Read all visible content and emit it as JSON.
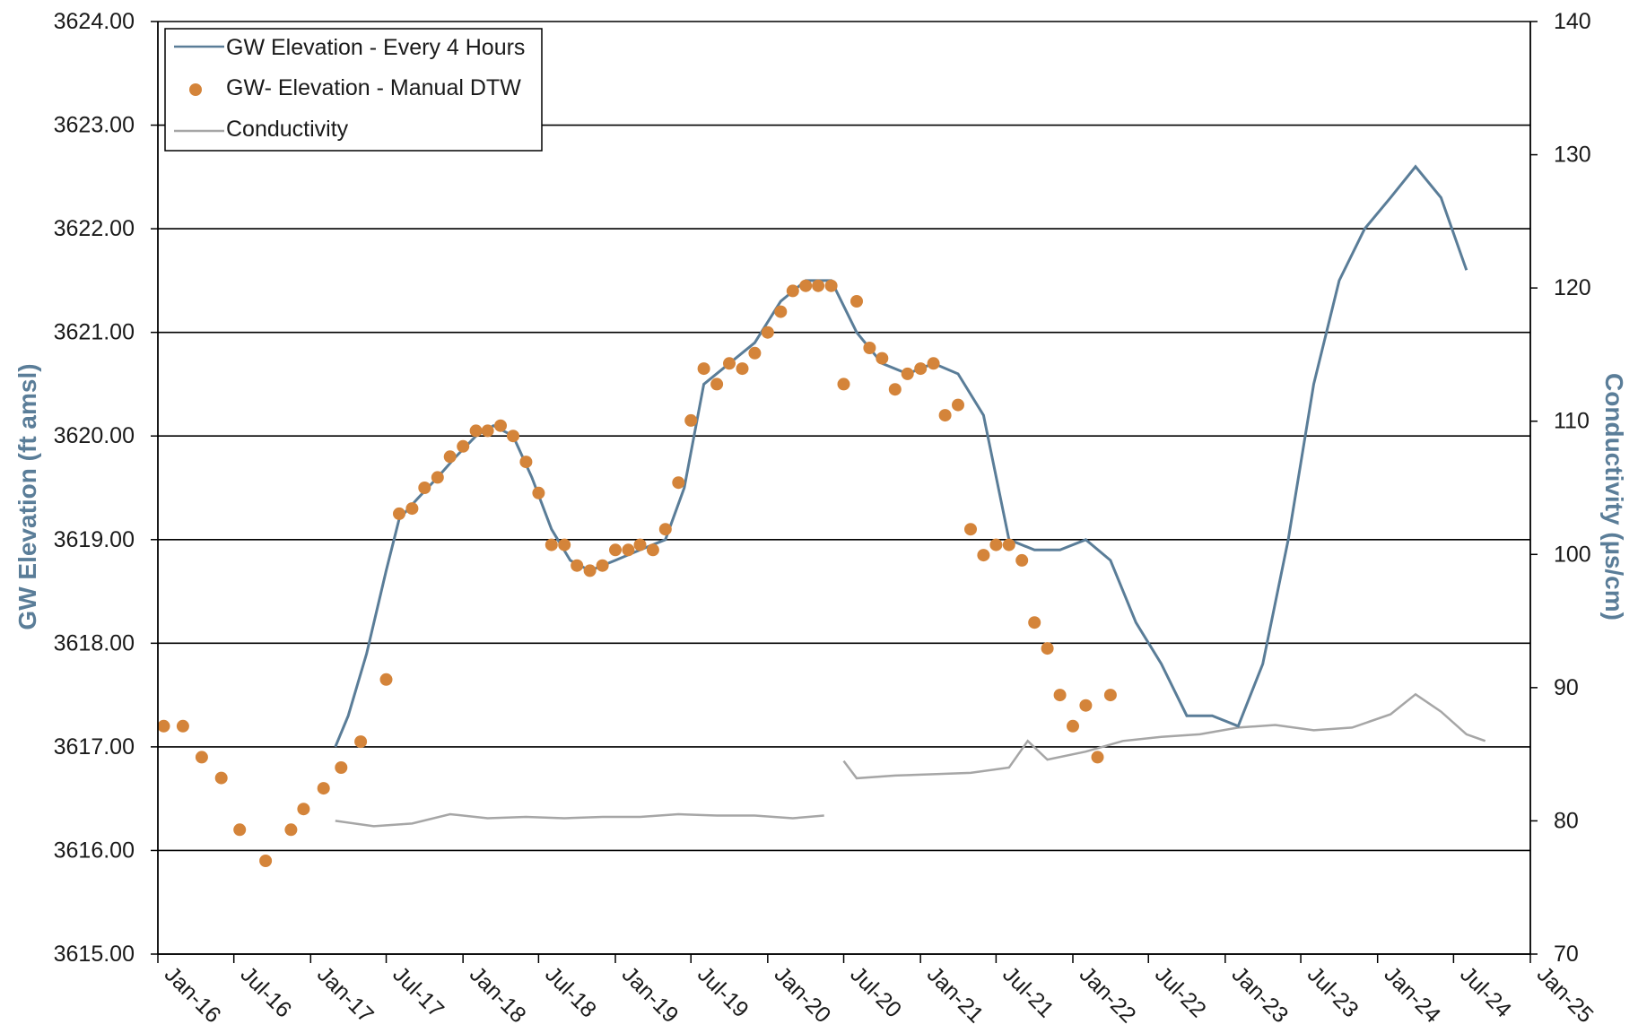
{
  "chart_data": {
    "type": "line",
    "title": "",
    "xlabel": "",
    "ylabel": "GW Elevation (ft amsl)",
    "y2label": "Conductivity (µs/cm)",
    "ylim": [
      3615,
      3624
    ],
    "y2lim": [
      70,
      140
    ],
    "x_tick_labels": [
      "Jan-16",
      "Jul-16",
      "Jan-17",
      "Jul-17",
      "Jan-18",
      "Jul-18",
      "Jan-19",
      "Jul-19",
      "Jan-20",
      "Jul-20",
      "Jan-21",
      "Jul-21",
      "Jan-22",
      "Jul-22",
      "Jan-23",
      "Jul-23",
      "Jan-24",
      "Jul-24",
      "Jan-25"
    ],
    "y_tick_labels": [
      "3615.00",
      "3616.00",
      "3617.00",
      "3618.00",
      "3619.00",
      "3620.00",
      "3621.00",
      "3622.00",
      "3623.00",
      "3624.00"
    ],
    "y2_tick_labels": [
      "70",
      "80",
      "90",
      "100",
      "110",
      "120",
      "130",
      "140"
    ],
    "grid": "horizontal",
    "legend_position": "top-left",
    "colors": {
      "gw_line": "#5a7d98",
      "manual_points": "#d4843a",
      "conductivity": "#a6a6a6",
      "y_title": "#5a7d98",
      "y2_title": "#5a7d98"
    },
    "series": [
      {
        "name": "GW Elevation - Every 4 Hours",
        "axis": "left",
        "style": "line",
        "points": [
          [
            "2017-03-01",
            3617.0
          ],
          [
            "2017-04-01",
            3617.3
          ],
          [
            "2017-05-15",
            3617.9
          ],
          [
            "2017-07-01",
            3618.7
          ],
          [
            "2017-08-01",
            3619.2
          ],
          [
            "2017-09-15",
            3619.4
          ],
          [
            "2017-11-01",
            3619.6
          ],
          [
            "2017-12-15",
            3619.8
          ],
          [
            "2018-02-01",
            3620.0
          ],
          [
            "2018-03-15",
            3620.1
          ],
          [
            "2018-05-01",
            3620.0
          ],
          [
            "2018-06-15",
            3619.6
          ],
          [
            "2018-08-01",
            3619.1
          ],
          [
            "2018-09-15",
            3618.8
          ],
          [
            "2018-11-01",
            3618.7
          ],
          [
            "2019-01-01",
            3618.8
          ],
          [
            "2019-03-01",
            3618.9
          ],
          [
            "2019-05-01",
            3619.0
          ],
          [
            "2019-06-15",
            3619.5
          ],
          [
            "2019-08-01",
            3620.5
          ],
          [
            "2019-10-01",
            3620.7
          ],
          [
            "2019-12-01",
            3620.9
          ],
          [
            "2020-02-01",
            3621.3
          ],
          [
            "2020-04-01",
            3621.5
          ],
          [
            "2020-06-01",
            3621.5
          ],
          [
            "2020-08-01",
            3621.0
          ],
          [
            "2020-10-01",
            3620.7
          ],
          [
            "2020-12-01",
            3620.6
          ],
          [
            "2021-02-01",
            3620.7
          ],
          [
            "2021-04-01",
            3620.6
          ],
          [
            "2021-06-01",
            3620.2
          ],
          [
            "2021-08-01",
            3619.0
          ],
          [
            "2021-10-01",
            3618.9
          ],
          [
            "2021-12-01",
            3618.9
          ],
          [
            "2022-02-01",
            3619.0
          ],
          [
            "2022-04-01",
            3618.8
          ],
          [
            "2022-06-01",
            3618.2
          ],
          [
            "2022-08-01",
            3617.8
          ],
          [
            "2022-10-01",
            3617.3
          ],
          [
            "2022-12-01",
            3617.3
          ],
          [
            "2023-02-01",
            3617.2
          ],
          [
            "2023-04-01",
            3617.8
          ],
          [
            "2023-06-01",
            3619.0
          ],
          [
            "2023-08-01",
            3620.5
          ],
          [
            "2023-10-01",
            3621.5
          ],
          [
            "2023-12-01",
            3622.0
          ],
          [
            "2024-02-01",
            3622.3
          ],
          [
            "2024-04-01",
            3622.6
          ],
          [
            "2024-06-01",
            3622.3
          ],
          [
            "2024-08-01",
            3621.6
          ]
        ]
      },
      {
        "name": "GW- Elevation - Manual DTW",
        "axis": "left",
        "style": "points",
        "points": [
          [
            "2016-01-15",
            3617.2
          ],
          [
            "2016-03-01",
            3617.2
          ],
          [
            "2016-04-15",
            3616.9
          ],
          [
            "2016-06-01",
            3616.7
          ],
          [
            "2016-07-15",
            3616.2
          ],
          [
            "2016-09-15",
            3615.9
          ],
          [
            "2016-11-15",
            3616.2
          ],
          [
            "2016-12-15",
            3616.4
          ],
          [
            "2017-02-01",
            3616.6
          ],
          [
            "2017-03-15",
            3616.8
          ],
          [
            "2017-05-01",
            3617.05
          ],
          [
            "2017-07-01",
            3617.65
          ],
          [
            "2017-08-01",
            3619.25
          ],
          [
            "2017-09-01",
            3619.3
          ],
          [
            "2017-10-01",
            3619.5
          ],
          [
            "2017-11-01",
            3619.6
          ],
          [
            "2017-12-01",
            3619.8
          ],
          [
            "2018-01-01",
            3619.9
          ],
          [
            "2018-02-01",
            3620.05
          ],
          [
            "2018-03-01",
            3620.05
          ],
          [
            "2018-04-01",
            3620.1
          ],
          [
            "2018-05-01",
            3620.0
          ],
          [
            "2018-06-01",
            3619.75
          ],
          [
            "2018-07-01",
            3619.45
          ],
          [
            "2018-08-01",
            3618.95
          ],
          [
            "2018-09-01",
            3618.95
          ],
          [
            "2018-10-01",
            3618.75
          ],
          [
            "2018-11-01",
            3618.7
          ],
          [
            "2018-12-01",
            3618.75
          ],
          [
            "2019-01-01",
            3618.9
          ],
          [
            "2019-02-01",
            3618.9
          ],
          [
            "2019-03-01",
            3618.95
          ],
          [
            "2019-04-01",
            3618.9
          ],
          [
            "2019-05-01",
            3619.1
          ],
          [
            "2019-06-01",
            3619.55
          ],
          [
            "2019-07-01",
            3620.15
          ],
          [
            "2019-08-01",
            3620.65
          ],
          [
            "2019-09-01",
            3620.5
          ],
          [
            "2019-10-01",
            3620.7
          ],
          [
            "2019-11-01",
            3620.65
          ],
          [
            "2019-12-01",
            3620.8
          ],
          [
            "2020-01-01",
            3621.0
          ],
          [
            "2020-02-01",
            3621.2
          ],
          [
            "2020-03-01",
            3621.4
          ],
          [
            "2020-04-01",
            3621.45
          ],
          [
            "2020-05-01",
            3621.45
          ],
          [
            "2020-06-01",
            3621.45
          ],
          [
            "2020-07-01",
            3620.5
          ],
          [
            "2020-08-01",
            3621.3
          ],
          [
            "2020-09-01",
            3620.85
          ],
          [
            "2020-10-01",
            3620.75
          ],
          [
            "2020-11-01",
            3620.45
          ],
          [
            "2020-12-01",
            3620.6
          ],
          [
            "2021-01-01",
            3620.65
          ],
          [
            "2021-02-01",
            3620.7
          ],
          [
            "2021-03-01",
            3620.2
          ],
          [
            "2021-04-01",
            3620.3
          ],
          [
            "2021-05-01",
            3619.1
          ],
          [
            "2021-06-01",
            3618.85
          ],
          [
            "2021-07-01",
            3618.95
          ],
          [
            "2021-08-01",
            3618.95
          ],
          [
            "2021-09-01",
            3618.8
          ],
          [
            "2021-10-01",
            3618.2
          ],
          [
            "2021-11-01",
            3617.95
          ],
          [
            "2021-12-01",
            3617.5
          ],
          [
            "2022-01-01",
            3617.2
          ],
          [
            "2022-02-01",
            3617.4
          ],
          [
            "2022-03-01",
            3616.9
          ],
          [
            "2022-04-01",
            3617.5
          ]
        ]
      },
      {
        "name": "Conductivity",
        "axis": "right",
        "style": "line",
        "points": [
          [
            "2017-03-01",
            80.0
          ],
          [
            "2017-06-01",
            79.6
          ],
          [
            "2017-09-01",
            79.8
          ],
          [
            "2017-12-01",
            80.5
          ],
          [
            "2018-03-01",
            80.2
          ],
          [
            "2018-06-01",
            80.3
          ],
          [
            "2018-09-01",
            80.2
          ],
          [
            "2018-12-01",
            80.3
          ],
          [
            "2019-03-01",
            80.3
          ],
          [
            "2019-06-01",
            80.5
          ],
          [
            "2019-09-01",
            80.4
          ],
          [
            "2019-12-01",
            80.4
          ],
          [
            "2020-03-01",
            80.2
          ],
          [
            "2020-05-15",
            80.4
          ],
          [
            "2020-07-01",
            84.5
          ],
          [
            "2020-08-01",
            83.2
          ],
          [
            "2020-11-01",
            83.4
          ],
          [
            "2021-02-01",
            83.5
          ],
          [
            "2021-05-01",
            83.6
          ],
          [
            "2021-08-01",
            84.0
          ],
          [
            "2021-09-15",
            86.0
          ],
          [
            "2021-11-01",
            84.6
          ],
          [
            "2022-02-01",
            85.2
          ],
          [
            "2022-05-01",
            86.0
          ],
          [
            "2022-08-01",
            86.3
          ],
          [
            "2022-11-01",
            86.5
          ],
          [
            "2023-02-01",
            87.0
          ],
          [
            "2023-05-01",
            87.2
          ],
          [
            "2023-08-01",
            86.8
          ],
          [
            "2023-11-01",
            87.0
          ],
          [
            "2024-02-01",
            88.0
          ],
          [
            "2024-04-01",
            89.5
          ],
          [
            "2024-06-01",
            88.2
          ],
          [
            "2024-08-01",
            86.5
          ],
          [
            "2024-09-15",
            86.0
          ]
        ]
      }
    ]
  }
}
